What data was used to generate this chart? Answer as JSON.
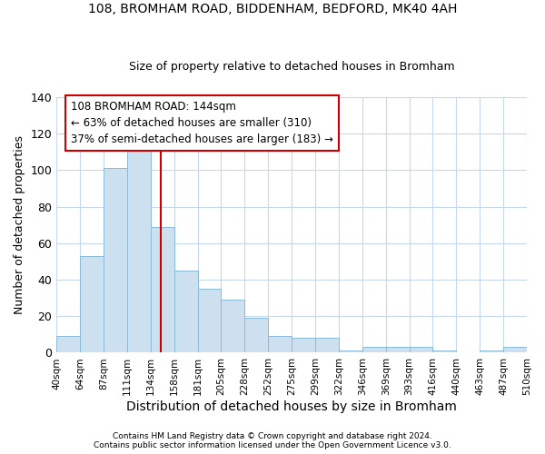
{
  "title1": "108, BROMHAM ROAD, BIDDENHAM, BEDFORD, MK40 4AH",
  "title2": "Size of property relative to detached houses in Bromham",
  "xlabel": "Distribution of detached houses by size in Bromham",
  "ylabel": "Number of detached properties",
  "bar_values": [
    9,
    53,
    101,
    111,
    69,
    45,
    35,
    29,
    19,
    9,
    8,
    8,
    1,
    3,
    3,
    3,
    1,
    0,
    1,
    3
  ],
  "bar_labels": [
    "40sqm",
    "64sqm",
    "87sqm",
    "111sqm",
    "134sqm",
    "158sqm",
    "181sqm",
    "205sqm",
    "228sqm",
    "252sqm",
    "275sqm",
    "299sqm",
    "322sqm",
    "346sqm",
    "369sqm",
    "393sqm",
    "416sqm",
    "440sqm",
    "463sqm",
    "487sqm",
    "510sqm"
  ],
  "bar_color": "#cce0f0",
  "bar_edge_color": "#89bcd8",
  "annotation_title": "108 BROMHAM ROAD: 144sqm",
  "annotation_line1": "← 63% of detached houses are smaller (310)",
  "annotation_line2": "37% of semi-detached houses are larger (183) →",
  "annotation_box_color": "#ffffff",
  "annotation_box_edge_color": "#cc0000",
  "red_line_color": "#cc0000",
  "ylim": [
    0,
    140
  ],
  "yticks": [
    0,
    20,
    40,
    60,
    80,
    100,
    120,
    140
  ],
  "footer1": "Contains HM Land Registry data © Crown copyright and database right 2024.",
  "footer2": "Contains public sector information licensed under the Open Government Licence v3.0.",
  "background_color": "#ffffff",
  "grid_color": "#c8d8ec",
  "title1_fontsize": 10,
  "title2_fontsize": 9
}
